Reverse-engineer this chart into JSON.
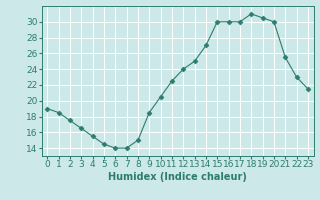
{
  "x": [
    0,
    1,
    2,
    3,
    4,
    5,
    6,
    7,
    8,
    9,
    10,
    11,
    12,
    13,
    14,
    15,
    16,
    17,
    18,
    19,
    20,
    21,
    22,
    23
  ],
  "y": [
    19,
    18.5,
    17.5,
    16.5,
    15.5,
    14.5,
    14,
    14,
    15,
    18.5,
    20.5,
    22.5,
    24,
    25,
    27,
    30,
    30,
    30,
    31,
    30.5,
    30,
    25.5,
    23,
    21.5
  ],
  "line_color": "#2d7d6e",
  "marker": "D",
  "bg_color": "#cce8e8",
  "grid_color": "#ffffff",
  "xlabel": "Humidex (Indice chaleur)",
  "xlim": [
    -0.5,
    23.5
  ],
  "ylim": [
    13,
    32
  ],
  "yticks": [
    14,
    16,
    18,
    20,
    22,
    24,
    26,
    28,
    30
  ],
  "xticks": [
    0,
    1,
    2,
    3,
    4,
    5,
    6,
    7,
    8,
    9,
    10,
    11,
    12,
    13,
    14,
    15,
    16,
    17,
    18,
    19,
    20,
    21,
    22,
    23
  ],
  "label_fontsize": 7,
  "tick_fontsize": 6.5
}
